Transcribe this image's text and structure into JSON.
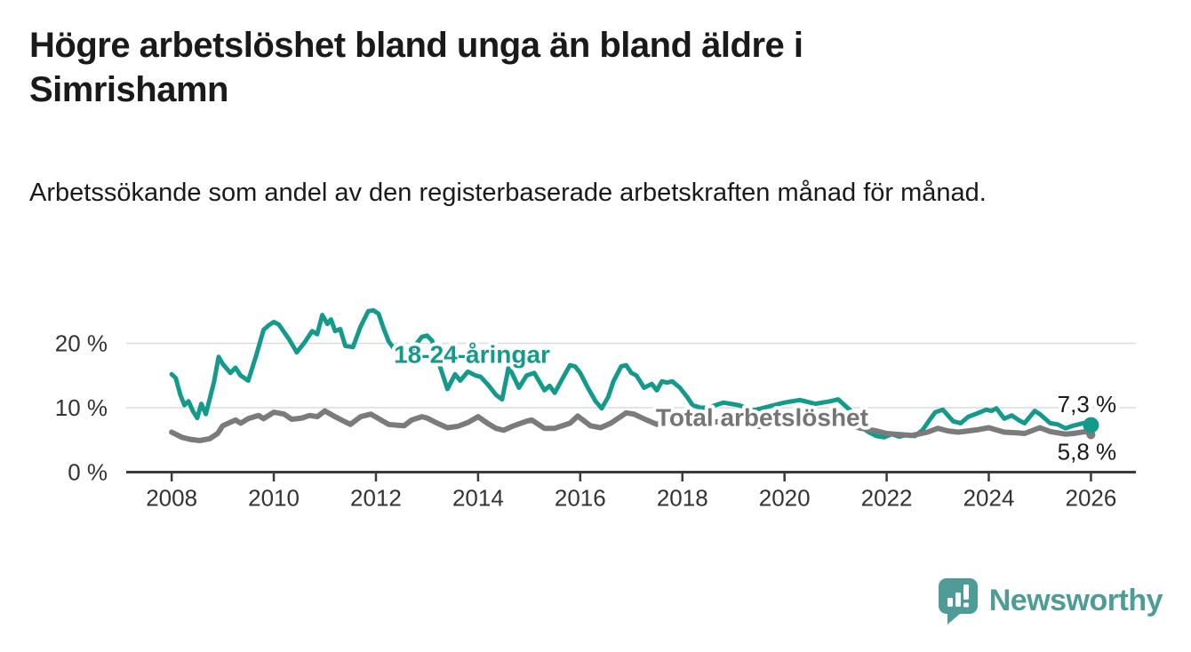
{
  "header": {
    "title": "Högre arbetslöshet bland unga än bland äldre i Simrishamn",
    "subtitle": "Arbetssökande som andel av den registerbaserade arbetskraften månad för månad."
  },
  "footer": {
    "brand": "Newsworthy"
  },
  "colors": {
    "accent_teal": "#149a8b",
    "line_gray": "#7b7b7b",
    "label_gray": "#757575",
    "grid": "#dcdcdc",
    "axis": "#3b3b3b",
    "tick_text": "#333333",
    "value_text": "#1a1a1a",
    "brand_teal": "#4d9c95",
    "title_text": "#1a1a1a"
  },
  "chart_data": {
    "type": "line",
    "title": "Högre arbetslöshet bland unga än bland äldre i Simrishamn",
    "xlabel": "",
    "ylabel": "Arbetssökande som andel av den registerbaserade arbetskraften",
    "xlim": [
      2007.11,
      2026.88
    ],
    "ylim": [
      0,
      25.72
    ],
    "grid_y": [
      10,
      20
    ],
    "x_ticks": [
      2008,
      2010,
      2012,
      2014,
      2016,
      2018,
      2020,
      2022,
      2024,
      2026
    ],
    "x_tick_labels": [
      "2008",
      "2010",
      "2012",
      "2014",
      "2016",
      "2018",
      "2020",
      "2022",
      "2024",
      "2026"
    ],
    "y_ticks": [
      0,
      10,
      20
    ],
    "y_tick_labels": [
      "0 %",
      "10 %",
      "20 %"
    ],
    "legend_position": "inline-labels",
    "series": [
      {
        "id": "18-24",
        "name": "18-24-åringar",
        "color": "#149a8b",
        "width": 5,
        "end_dot": true,
        "end_dot_radius": 9,
        "end_value": 7.3,
        "points": [
          [
            2008.0,
            15.2
          ],
          [
            2008.08,
            14.6
          ],
          [
            2008.17,
            12.0
          ],
          [
            2008.25,
            10.4
          ],
          [
            2008.33,
            11.0
          ],
          [
            2008.42,
            9.4
          ],
          [
            2008.5,
            8.4
          ],
          [
            2008.58,
            10.6
          ],
          [
            2008.67,
            9.0
          ],
          [
            2008.75,
            11.5
          ],
          [
            2008.83,
            14.0
          ],
          [
            2008.92,
            17.9
          ],
          [
            2009.0,
            16.8
          ],
          [
            2009.15,
            15.4
          ],
          [
            2009.25,
            16.2
          ],
          [
            2009.35,
            15.0
          ],
          [
            2009.5,
            14.2
          ],
          [
            2009.65,
            18.0
          ],
          [
            2009.8,
            22.1
          ],
          [
            2009.9,
            22.8
          ],
          [
            2010.0,
            23.3
          ],
          [
            2010.1,
            22.9
          ],
          [
            2010.3,
            20.6
          ],
          [
            2010.45,
            18.6
          ],
          [
            2010.6,
            20.1
          ],
          [
            2010.75,
            21.9
          ],
          [
            2010.85,
            21.4
          ],
          [
            2010.95,
            24.4
          ],
          [
            2011.05,
            23.0
          ],
          [
            2011.12,
            23.7
          ],
          [
            2011.2,
            21.9
          ],
          [
            2011.3,
            22.2
          ],
          [
            2011.4,
            19.6
          ],
          [
            2011.55,
            19.4
          ],
          [
            2011.7,
            22.6
          ],
          [
            2011.85,
            25.0
          ],
          [
            2011.95,
            25.1
          ],
          [
            2012.05,
            24.6
          ],
          [
            2012.15,
            22.3
          ],
          [
            2012.25,
            20.3
          ],
          [
            2012.35,
            19.2
          ],
          [
            2012.5,
            17.8
          ],
          [
            2012.6,
            17.5
          ],
          [
            2012.75,
            19.5
          ],
          [
            2012.9,
            21.0
          ],
          [
            2013.0,
            21.2
          ],
          [
            2013.1,
            20.4
          ],
          [
            2013.25,
            16.5
          ],
          [
            2013.4,
            12.9
          ],
          [
            2013.55,
            15.2
          ],
          [
            2013.65,
            14.2
          ],
          [
            2013.8,
            15.6
          ],
          [
            2013.95,
            15.0
          ],
          [
            2014.05,
            14.8
          ],
          [
            2014.2,
            13.5
          ],
          [
            2014.35,
            12.0
          ],
          [
            2014.47,
            11.3
          ],
          [
            2014.6,
            16.4
          ],
          [
            2014.8,
            13.1
          ],
          [
            2014.95,
            15.0
          ],
          [
            2015.1,
            15.4
          ],
          [
            2015.3,
            12.7
          ],
          [
            2015.4,
            13.4
          ],
          [
            2015.5,
            12.3
          ],
          [
            2015.65,
            14.5
          ],
          [
            2015.8,
            16.6
          ],
          [
            2015.9,
            16.4
          ],
          [
            2016.0,
            15.4
          ],
          [
            2016.15,
            13.1
          ],
          [
            2016.3,
            11.0
          ],
          [
            2016.42,
            9.9
          ],
          [
            2016.55,
            11.7
          ],
          [
            2016.65,
            14.1
          ],
          [
            2016.8,
            16.4
          ],
          [
            2016.9,
            16.6
          ],
          [
            2017.0,
            15.4
          ],
          [
            2017.1,
            15.0
          ],
          [
            2017.25,
            13.1
          ],
          [
            2017.4,
            13.7
          ],
          [
            2017.5,
            12.7
          ],
          [
            2017.6,
            14.1
          ],
          [
            2017.7,
            13.9
          ],
          [
            2017.8,
            14.1
          ],
          [
            2017.95,
            13.1
          ],
          [
            2018.1,
            11.6
          ],
          [
            2018.2,
            10.4
          ],
          [
            2018.35,
            10.0
          ],
          [
            2018.5,
            10.0
          ],
          [
            2018.8,
            10.8
          ],
          [
            2019.1,
            10.4
          ],
          [
            2019.4,
            9.6
          ],
          [
            2019.7,
            10.2
          ],
          [
            2020.0,
            10.8
          ],
          [
            2020.3,
            11.2
          ],
          [
            2020.6,
            10.6
          ],
          [
            2020.9,
            11.0
          ],
          [
            2021.05,
            11.3
          ],
          [
            2021.3,
            9.5
          ],
          [
            2021.5,
            7.0
          ],
          [
            2021.65,
            6.2
          ],
          [
            2021.8,
            5.6
          ],
          [
            2021.95,
            5.4
          ],
          [
            2022.1,
            5.9
          ],
          [
            2022.25,
            5.5
          ],
          [
            2022.4,
            5.8
          ],
          [
            2022.55,
            5.6
          ],
          [
            2022.7,
            6.5
          ],
          [
            2022.85,
            8.2
          ],
          [
            2022.95,
            9.3
          ],
          [
            2023.1,
            9.7
          ],
          [
            2023.3,
            7.9
          ],
          [
            2023.45,
            7.6
          ],
          [
            2023.6,
            8.6
          ],
          [
            2023.8,
            9.2
          ],
          [
            2023.95,
            9.7
          ],
          [
            2024.05,
            9.5
          ],
          [
            2024.15,
            9.9
          ],
          [
            2024.3,
            8.3
          ],
          [
            2024.45,
            8.8
          ],
          [
            2024.6,
            8.0
          ],
          [
            2024.7,
            7.6
          ],
          [
            2024.9,
            9.5
          ],
          [
            2025.0,
            9.0
          ],
          [
            2025.2,
            7.6
          ],
          [
            2025.35,
            7.4
          ],
          [
            2025.5,
            6.8
          ],
          [
            2025.65,
            7.2
          ],
          [
            2025.85,
            7.6
          ],
          [
            2026.0,
            7.3
          ]
        ]
      },
      {
        "id": "total",
        "name": "Total arbetslöshet",
        "color": "#7b7b7b",
        "width": 6,
        "end_dot": true,
        "end_dot_radius": 5,
        "end_value": 5.8,
        "points": [
          [
            2008.0,
            6.2
          ],
          [
            2008.2,
            5.4
          ],
          [
            2008.35,
            5.1
          ],
          [
            2008.55,
            4.9
          ],
          [
            2008.75,
            5.2
          ],
          [
            2008.9,
            6.0
          ],
          [
            2009.0,
            7.2
          ],
          [
            2009.25,
            8.1
          ],
          [
            2009.35,
            7.6
          ],
          [
            2009.5,
            8.3
          ],
          [
            2009.7,
            8.8
          ],
          [
            2009.8,
            8.3
          ],
          [
            2010.0,
            9.3
          ],
          [
            2010.2,
            9.0
          ],
          [
            2010.35,
            8.2
          ],
          [
            2010.55,
            8.4
          ],
          [
            2010.7,
            8.8
          ],
          [
            2010.85,
            8.6
          ],
          [
            2011.0,
            9.5
          ],
          [
            2011.2,
            8.6
          ],
          [
            2011.35,
            8.0
          ],
          [
            2011.5,
            7.4
          ],
          [
            2011.7,
            8.6
          ],
          [
            2011.9,
            9.0
          ],
          [
            2012.1,
            8.1
          ],
          [
            2012.25,
            7.4
          ],
          [
            2012.4,
            7.3
          ],
          [
            2012.55,
            7.2
          ],
          [
            2012.7,
            8.1
          ],
          [
            2012.9,
            8.6
          ],
          [
            2013.0,
            8.4
          ],
          [
            2013.2,
            7.6
          ],
          [
            2013.4,
            6.9
          ],
          [
            2013.6,
            7.1
          ],
          [
            2013.8,
            7.7
          ],
          [
            2014.0,
            8.6
          ],
          [
            2014.2,
            7.5
          ],
          [
            2014.35,
            6.8
          ],
          [
            2014.5,
            6.5
          ],
          [
            2014.7,
            7.2
          ],
          [
            2014.95,
            7.9
          ],
          [
            2015.05,
            8.1
          ],
          [
            2015.3,
            6.8
          ],
          [
            2015.5,
            6.8
          ],
          [
            2015.8,
            7.6
          ],
          [
            2015.95,
            8.7
          ],
          [
            2016.2,
            7.2
          ],
          [
            2016.4,
            6.9
          ],
          [
            2016.6,
            7.6
          ],
          [
            2016.9,
            9.2
          ],
          [
            2017.05,
            9.0
          ],
          [
            2017.3,
            8.1
          ],
          [
            2017.5,
            7.4
          ],
          [
            2017.7,
            8.1
          ],
          [
            2017.95,
            8.8
          ],
          [
            2018.15,
            8.3
          ],
          [
            2018.5,
            7.6
          ],
          [
            2018.9,
            8.1
          ],
          [
            2019.2,
            7.4
          ],
          [
            2019.5,
            7.1
          ],
          [
            2019.9,
            7.6
          ],
          [
            2020.2,
            8.0
          ],
          [
            2020.5,
            8.6
          ],
          [
            2020.9,
            8.3
          ],
          [
            2021.2,
            7.4
          ],
          [
            2021.5,
            6.8
          ],
          [
            2021.8,
            6.4
          ],
          [
            2022.0,
            6.0
          ],
          [
            2022.3,
            5.8
          ],
          [
            2022.5,
            5.7
          ],
          [
            2022.8,
            6.2
          ],
          [
            2023.0,
            6.8
          ],
          [
            2023.2,
            6.4
          ],
          [
            2023.4,
            6.2
          ],
          [
            2023.6,
            6.4
          ],
          [
            2023.8,
            6.6
          ],
          [
            2024.0,
            6.9
          ],
          [
            2024.3,
            6.2
          ],
          [
            2024.55,
            6.1
          ],
          [
            2024.7,
            6.0
          ],
          [
            2025.0,
            6.9
          ],
          [
            2025.2,
            6.3
          ],
          [
            2025.5,
            5.9
          ],
          [
            2025.65,
            6.0
          ],
          [
            2025.9,
            6.3
          ],
          [
            2026.0,
            5.8
          ]
        ]
      }
    ],
    "annotations": [
      {
        "name": "series-label-18-24",
        "text": "18-24-åringar",
        "x": 2012.35,
        "y": 18.3,
        "color": "#149a8b",
        "bold": true,
        "halo": true,
        "anchor": "start",
        "size": 28
      },
      {
        "name": "series-label-total",
        "text": "Total arbetslöshet",
        "x": 2017.48,
        "y": 8.5,
        "color": "#757575",
        "bold": true,
        "halo": true,
        "anchor": "start",
        "size": 28
      },
      {
        "name": "end-value-label-18-24",
        "text": "7,3 %",
        "x": 2026.5,
        "y": 10.55,
        "color": "#1a1a1a",
        "bold": false,
        "halo": true,
        "anchor": "end",
        "size": 26
      },
      {
        "name": "end-value-label-total",
        "text": "5,8 %",
        "x": 2026.5,
        "y": 3.2,
        "color": "#1a1a1a",
        "bold": false,
        "halo": true,
        "anchor": "end",
        "size": 26
      }
    ]
  }
}
